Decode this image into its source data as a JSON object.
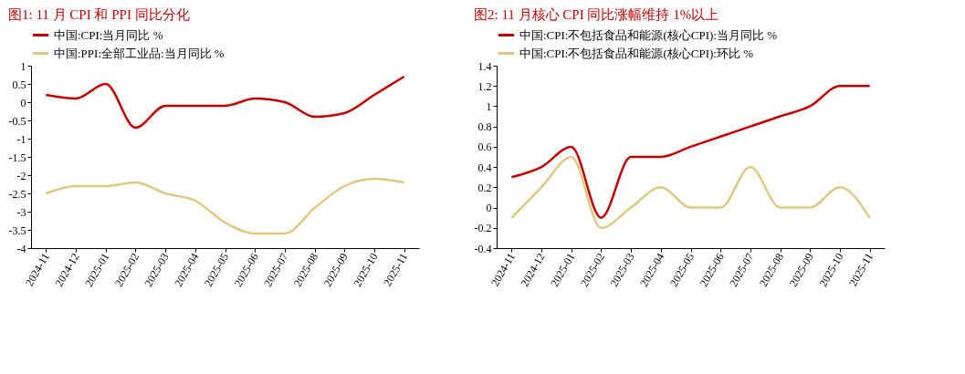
{
  "chart_data": [
    {
      "type": "line",
      "title": "图1:   11 月 CPI 和 PPI 同比分化",
      "categories": [
        "2024-11",
        "2024-12",
        "2025-01",
        "2025-02",
        "2025-03",
        "2025-04",
        "2025-05",
        "2025-06",
        "2025-07",
        "2025-08",
        "2025-09",
        "2025-10",
        "2025-11"
      ],
      "series": [
        {
          "name": "中国:CPI:当月同比 %",
          "color": "#c00000",
          "values": [
            0.2,
            0.1,
            0.5,
            -0.7,
            -0.1,
            -0.1,
            -0.1,
            0.1,
            0.0,
            -0.4,
            -0.3,
            0.2,
            0.7
          ]
        },
        {
          "name": "中国:PPI:全部工业品:当月同比 %",
          "color": "#e0c882",
          "values": [
            -2.5,
            -2.3,
            -2.3,
            -2.2,
            -2.5,
            -2.7,
            -3.3,
            -3.6,
            -3.6,
            -2.9,
            -2.3,
            -2.1,
            -2.2
          ]
        }
      ],
      "ylim": [
        -4,
        1
      ],
      "yticks": [
        -4,
        -3.5,
        -3,
        -2.5,
        -2,
        -1.5,
        -1,
        -0.5,
        0,
        0.5,
        1
      ],
      "grid": false,
      "legend": "top"
    },
    {
      "type": "line",
      "title": "图2:   11 月核心 CPI 同比涨幅维持 1%以上",
      "categories": [
        "2024-11",
        "2024-12",
        "2025-01",
        "2025-02",
        "2025-03",
        "2025-04",
        "2025-05",
        "2025-06",
        "2025-07",
        "2025-08",
        "2025-09",
        "2025-10",
        "2025-11"
      ],
      "series": [
        {
          "name": "中国:CPI:不包括食品和能源(核心CPI):当月同比 %",
          "color": "#c00000",
          "values": [
            0.3,
            0.4,
            0.6,
            -0.1,
            0.5,
            0.5,
            0.6,
            0.7,
            0.8,
            0.9,
            1.0,
            1.2,
            1.2
          ]
        },
        {
          "name": "中国:CPI:不包括食品和能源(核心CPI):环比 %",
          "color": "#e0c882",
          "values": [
            -0.1,
            0.2,
            0.5,
            -0.2,
            0.0,
            0.2,
            0.0,
            0.0,
            0.4,
            0.0,
            0.0,
            0.2,
            -0.1
          ]
        }
      ],
      "ylim": [
        -0.4,
        1.4
      ],
      "yticks": [
        -0.4,
        -0.2,
        0,
        0.2,
        0.4,
        0.6,
        0.8,
        1,
        1.2,
        1.4
      ],
      "grid": false,
      "legend": "top"
    }
  ]
}
